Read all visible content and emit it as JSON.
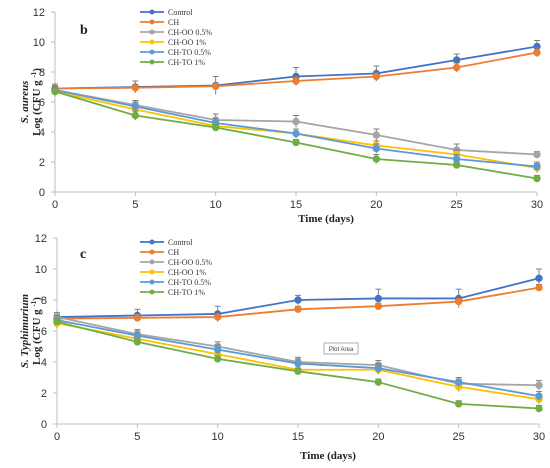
{
  "chart_data": [
    {
      "type": "line",
      "panel_label": "b",
      "xlabel": "Time (days)",
      "ylabel_italic": "S. aureus",
      "ylabel_unit": "Log (CFU g",
      "ylabel_exp": "-1",
      "ylabel_close": ")",
      "x": [
        0,
        5,
        10,
        15,
        20,
        25,
        30
      ],
      "xlim": [
        0,
        30
      ],
      "ylim": [
        0,
        12
      ],
      "yticks": [
        0,
        2,
        4,
        6,
        8,
        10,
        12
      ],
      "legend_position": "top-center",
      "series": [
        {
          "name": "Control",
          "color": "#4472C4",
          "values": [
            6.9,
            7.0,
            7.1,
            7.7,
            7.9,
            8.8,
            9.7
          ],
          "errors": [
            0.3,
            0.4,
            0.6,
            0.6,
            0.5,
            0.4,
            0.4
          ]
        },
        {
          "name": "CH",
          "color": "#ED7D31",
          "values": [
            6.9,
            6.95,
            7.05,
            7.4,
            7.7,
            8.3,
            9.3
          ],
          "errors": [
            0.2,
            0.2,
            0.2,
            0.3,
            0.3,
            0.3,
            0.3
          ]
        },
        {
          "name": "CH-OO 0.5%",
          "color": "#A5A5A5",
          "values": [
            6.8,
            5.8,
            4.8,
            4.7,
            3.8,
            2.8,
            2.5
          ],
          "errors": [
            0.3,
            0.3,
            0.4,
            0.4,
            0.4,
            0.4,
            0.2
          ]
        },
        {
          "name": "CH-OO 1%",
          "color": "#FFC000",
          "values": [
            6.7,
            5.5,
            4.4,
            3.9,
            3.1,
            2.5,
            1.6
          ],
          "errors": [
            0.3,
            0.3,
            0.3,
            0.3,
            0.3,
            0.3,
            0.3
          ]
        },
        {
          "name": "CH-TO 0.5%",
          "color": "#5B9BD5",
          "values": [
            6.8,
            5.7,
            4.6,
            3.9,
            2.9,
            2.2,
            1.7
          ],
          "errors": [
            0.3,
            0.3,
            0.3,
            0.3,
            0.3,
            0.3,
            0.3
          ]
        },
        {
          "name": "CH-TO 1%",
          "color": "#70AD47",
          "values": [
            6.7,
            5.1,
            4.3,
            3.3,
            2.2,
            1.8,
            0.9
          ],
          "errors": [
            0.3,
            0.3,
            0.2,
            0.2,
            0.3,
            0.2,
            0.2
          ]
        }
      ]
    },
    {
      "type": "line",
      "panel_label": "c",
      "xlabel": "Time (days)",
      "ylabel_italic": "S. Typhimurium",
      "ylabel_unit": "Log (CFU g",
      "ylabel_exp": "-1",
      "ylabel_close": ")",
      "x": [
        0,
        5,
        10,
        15,
        20,
        25,
        30
      ],
      "xlim": [
        0,
        30
      ],
      "ylim": [
        0,
        12
      ],
      "yticks": [
        0,
        2,
        4,
        6,
        8,
        10,
        12
      ],
      "legend_position": "top-center",
      "annotation": "Plot Area",
      "series": [
        {
          "name": "Control",
          "color": "#4472C4",
          "values": [
            6.9,
            7.0,
            7.1,
            8.0,
            8.1,
            8.1,
            9.4
          ],
          "errors": [
            0.2,
            0.4,
            0.5,
            0.3,
            0.6,
            0.6,
            0.6
          ]
        },
        {
          "name": "CH",
          "color": "#ED7D31",
          "values": [
            6.8,
            6.85,
            6.9,
            7.4,
            7.6,
            7.9,
            8.8
          ],
          "errors": [
            0.2,
            0.2,
            0.2,
            0.2,
            0.2,
            0.2,
            0.2
          ]
        },
        {
          "name": "CH-OO 0.5%",
          "color": "#A5A5A5",
          "values": [
            6.9,
            5.8,
            5.0,
            4.0,
            3.8,
            2.6,
            2.5
          ],
          "errors": [
            0.3,
            0.3,
            0.3,
            0.3,
            0.3,
            0.3,
            0.3
          ]
        },
        {
          "name": "CH-OO 1%",
          "color": "#FFC000",
          "values": [
            6.5,
            5.5,
            4.5,
            3.5,
            3.5,
            2.4,
            1.6
          ],
          "errors": [
            0.3,
            0.3,
            0.3,
            0.3,
            0.3,
            0.3,
            0.3
          ]
        },
        {
          "name": "CH-TO 0.5%",
          "color": "#5B9BD5",
          "values": [
            6.7,
            5.7,
            4.8,
            3.9,
            3.6,
            2.7,
            1.8
          ],
          "errors": [
            0.3,
            0.3,
            0.3,
            0.3,
            0.3,
            0.3,
            0.3
          ]
        },
        {
          "name": "CH-TO 1%",
          "color": "#70AD47",
          "values": [
            6.6,
            5.3,
            4.2,
            3.4,
            2.7,
            1.3,
            1.0
          ],
          "errors": [
            0.2,
            0.2,
            0.2,
            0.2,
            0.2,
            0.2,
            0.2
          ]
        }
      ]
    }
  ]
}
